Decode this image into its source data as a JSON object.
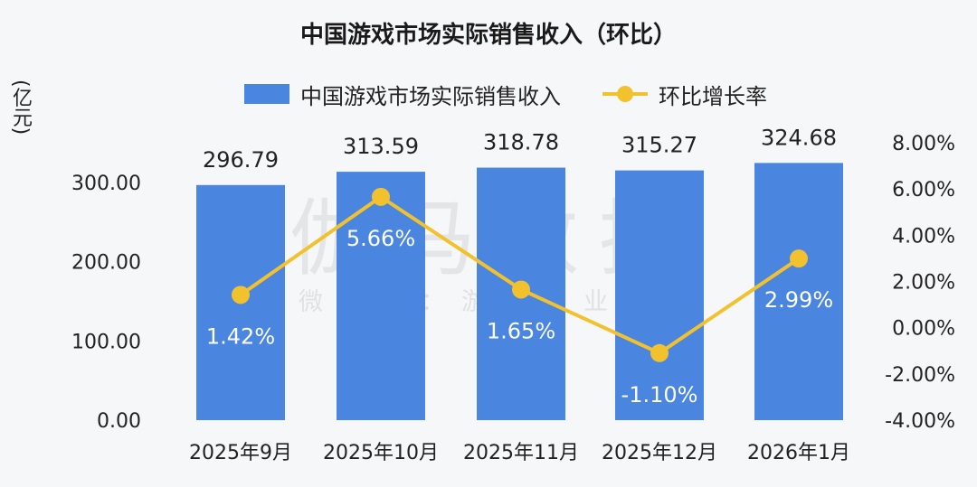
{
  "chart_data": {
    "type": "bar",
    "title": "中国游戏市场实际销售收入（环比）",
    "unit_label": "(亿元)",
    "categories": [
      "2025年9月",
      "2025年10月",
      "2025年11月",
      "2025年12月",
      "2026年1月"
    ],
    "series": [
      {
        "name": "中国游戏市场实际销售收入",
        "type": "bar",
        "axis": "left",
        "color": "#4a86df",
        "values": [
          296.79,
          313.59,
          318.78,
          315.27,
          324.68
        ],
        "labels": [
          "296.79",
          "313.59",
          "318.78",
          "315.27",
          "324.68"
        ]
      },
      {
        "name": "环比增长率",
        "type": "line",
        "axis": "right",
        "color": "#f2c12e",
        "values": [
          1.42,
          5.66,
          1.65,
          -1.1,
          2.99
        ],
        "labels": [
          "1.42%",
          "5.66%",
          "1.65%",
          "-1.10%",
          "2.99%"
        ]
      }
    ],
    "y_left": {
      "range": [
        0,
        300
      ],
      "ticks": [
        0,
        100,
        200,
        300
      ],
      "tick_labels": [
        "0.00",
        "100.00",
        "200.00",
        "300.00"
      ]
    },
    "y_right": {
      "range": [
        -4,
        8
      ],
      "ticks": [
        -4,
        -2,
        0,
        2,
        4,
        6,
        8
      ],
      "tick_labels": [
        "-4.00%",
        "-2.00%",
        "0.00%",
        "2.00%",
        "4.00%",
        "6.00%",
        "8.00%"
      ]
    },
    "grid": false,
    "legend_position": "top"
  },
  "watermark": {
    "main": "伽马数据",
    "sub": "微信号：游戏产业报告"
  }
}
